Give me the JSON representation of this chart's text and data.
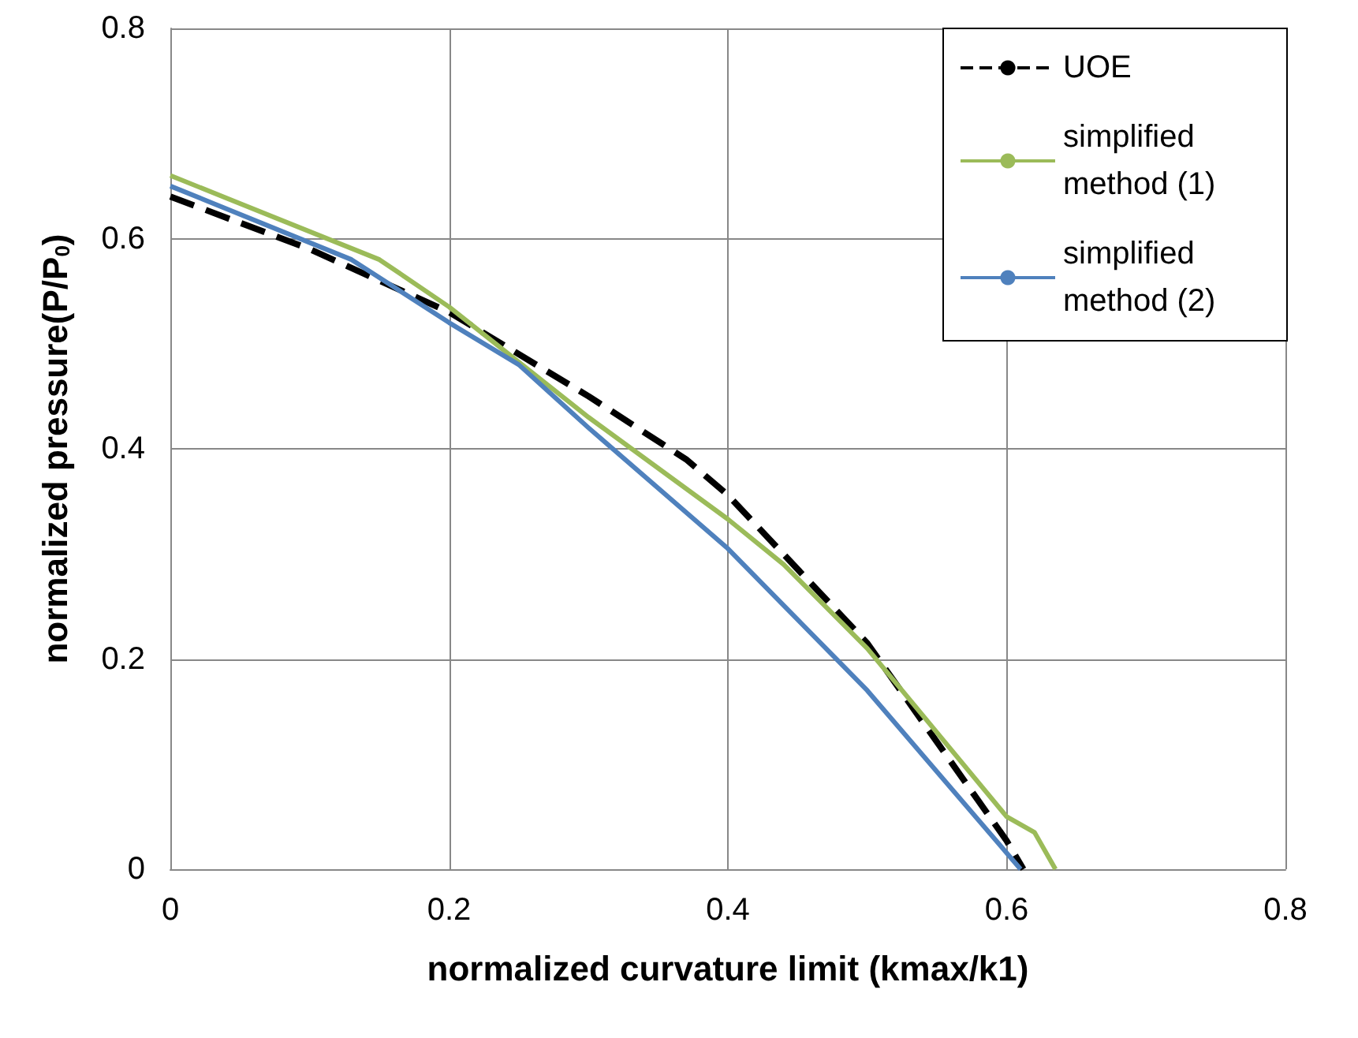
{
  "chart_data": {
    "type": "line",
    "xlabel": "normalized curvature limit (kmax/k1)",
    "ylabel": "normalized pressure(P/P$_{0}$)",
    "xlim": [
      0,
      0.8
    ],
    "xticks": [
      0,
      0.2,
      0.4,
      0.6,
      0.8
    ],
    "ylim": [
      0,
      0.8
    ],
    "yticks": [
      0,
      0.2,
      0.4,
      0.6,
      0.8
    ],
    "grid": true,
    "legend": "top right",
    "marker": "none",
    "series": [
      {
        "name": "UOE",
        "color": "#000000",
        "line_style": "dashed",
        "x": [
          0,
          0.1,
          0.2,
          0.3,
          0.37,
          0.4,
          0.5,
          0.6,
          0.612
        ],
        "values": [
          0.64,
          0.59,
          0.53,
          0.45,
          0.39,
          0.356,
          0.215,
          0.027,
          0
        ]
      },
      {
        "name": "simplified method (1)",
        "color": "#9bbb59",
        "line_style": "solid",
        "x": [
          0,
          0.15,
          0.2,
          0.3,
          0.4,
          0.44,
          0.5,
          0.6,
          0.62,
          0.635
        ],
        "values": [
          0.66,
          0.58,
          0.535,
          0.43,
          0.333,
          0.29,
          0.21,
          0.05,
          0.035,
          0
        ]
      },
      {
        "name": "simplified method (2)",
        "color": "#4f81bd",
        "line_style": "solid",
        "x": [
          0,
          0.13,
          0.2,
          0.25,
          0.3,
          0.4,
          0.5,
          0.61
        ],
        "values": [
          0.65,
          0.58,
          0.52,
          0.48,
          0.42,
          0.305,
          0.17,
          0
        ]
      }
    ]
  }
}
